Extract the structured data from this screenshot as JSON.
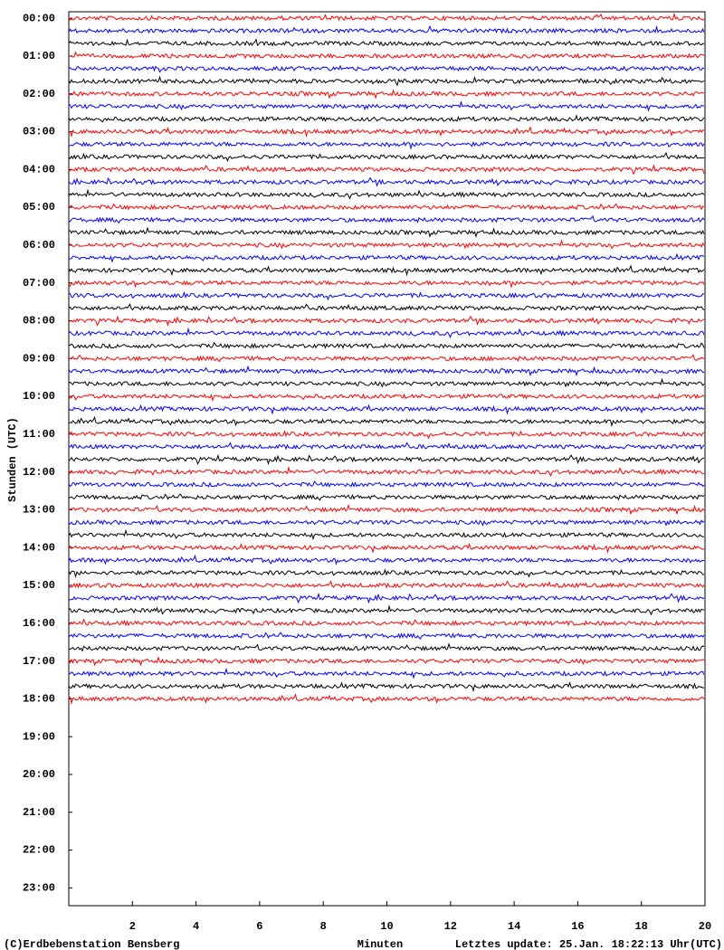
{
  "chart_data": {
    "type": "helicorder",
    "y_label": "Stunden (UTC)",
    "x_label": "Minuten",
    "footer_left": "(C)Erdbebenstation Bensberg",
    "footer_right": "Letztes update: 25.Jan. 18:22:13 Uhr(UTC)",
    "xlim": [
      0,
      20
    ],
    "xticks": [
      2,
      4,
      6,
      8,
      10,
      12,
      14,
      16,
      18,
      20
    ],
    "ylim": [
      -0.17,
      23.47
    ],
    "yticks": [
      {
        "value": 0,
        "label": "00:00"
      },
      {
        "value": 1,
        "label": "01:00"
      },
      {
        "value": 2,
        "label": "02:00"
      },
      {
        "value": 3,
        "label": "03:00"
      },
      {
        "value": 4,
        "label": "04:00"
      },
      {
        "value": 5,
        "label": "05:00"
      },
      {
        "value": 6,
        "label": "06:00"
      },
      {
        "value": 7,
        "label": "07:00"
      },
      {
        "value": 8,
        "label": "08:00"
      },
      {
        "value": 9,
        "label": "09:00"
      },
      {
        "value": 10,
        "label": "10:00"
      },
      {
        "value": 11,
        "label": "11:00"
      },
      {
        "value": 12,
        "label": "12:00"
      },
      {
        "value": 13,
        "label": "13:00"
      },
      {
        "value": 14,
        "label": "14:00"
      },
      {
        "value": 15,
        "label": "15:00"
      },
      {
        "value": 16,
        "label": "16:00"
      },
      {
        "value": 17,
        "label": "17:00"
      },
      {
        "value": 18,
        "label": "18:00"
      },
      {
        "value": 19,
        "label": "19:00"
      },
      {
        "value": 20,
        "label": "20:00"
      },
      {
        "value": 21,
        "label": "21:00"
      },
      {
        "value": 22,
        "label": "22:00"
      },
      {
        "value": 23,
        "label": "23:00"
      }
    ],
    "trace_colors": [
      "#ff0000",
      "#0000ff",
      "#000000"
    ],
    "trace_rows": 55
  }
}
